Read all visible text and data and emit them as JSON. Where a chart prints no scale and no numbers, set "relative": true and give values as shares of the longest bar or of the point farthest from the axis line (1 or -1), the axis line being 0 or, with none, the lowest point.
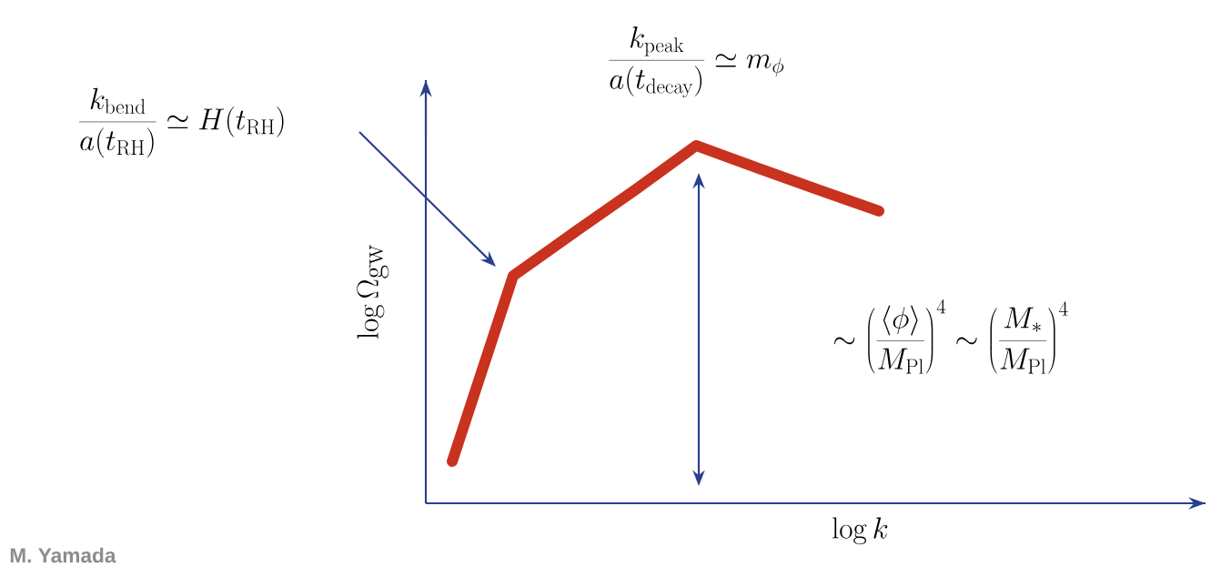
{
  "chart_data": {
    "type": "line",
    "relative": true,
    "color": "#c8321e",
    "line_style": "solid",
    "marker": "none",
    "categories": [
      null,
      null,
      null,
      null,
      null,
      null,
      null,
      null
    ],
    "values": [
      0.117,
      0.636,
      0.757,
      0.876,
      1,
      0.938,
      0.877,
      0.817
    ],
    "xlabel": "\\log k",
    "ylabel": "\\log \\Omega_{\\rm gw}",
    "annotations": [
      "\\frac{k_{\\rm bend}}{a(t_{\\rm RH})} \\simeq H(t_{\\rm RH})",
      "\\frac{k_{\\rm peak}}{a(t_{\\rm decay})} \\simeq m_\\phi",
      "\\sim \\left(\\frac{\\langle\\phi\\rangle}{M_{\\rm Pl}}\\right)^4 \\sim \\left(\\frac{M_*}{M_{\\rm Pl}}\\right)^4",
      "M. Yamada"
    ]
  }
}
